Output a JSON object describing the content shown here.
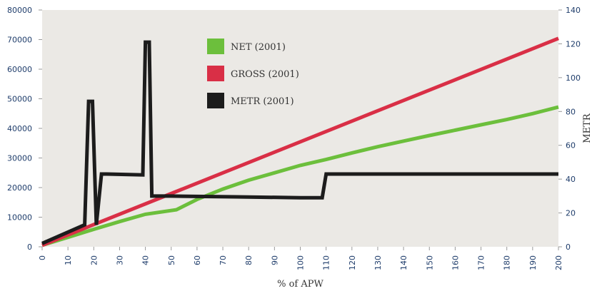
{
  "chart_data": {
    "type": "line",
    "xlabel": "% of APW",
    "ylabel_left": "",
    "ylabel_right": "METR",
    "x_ticks": [
      0,
      10,
      20,
      30,
      40,
      50,
      60,
      70,
      80,
      90,
      100,
      110,
      120,
      130,
      140,
      150,
      160,
      170,
      180,
      190,
      200
    ],
    "y_left_ticks": [
      0,
      10000,
      20000,
      30000,
      40000,
      50000,
      60000,
      70000,
      80000
    ],
    "y_right_ticks": [
      0,
      20,
      40,
      60,
      80,
      100,
      120,
      140
    ],
    "xlim": [
      0,
      200
    ],
    "ylim_left": [
      0,
      80000
    ],
    "ylim_right": [
      0,
      140
    ],
    "legend_position": "top-center",
    "grid": false,
    "colors": {
      "NET (2001)": "#6cbf3c",
      "GROSS (2001)": "#d92f46",
      "METR (2001)": "#1c1c1c",
      "plot_background": "#ebe9e5"
    },
    "series": [
      {
        "name": "NET (2001)",
        "axis": "left",
        "x": [
          0,
          10,
          20,
          30,
          40,
          52,
          60,
          70,
          80,
          90,
          100,
          110,
          120,
          130,
          140,
          150,
          160,
          170,
          180,
          190,
          200
        ],
        "y": [
          500,
          3200,
          5900,
          8500,
          11000,
          12500,
          16000,
          19500,
          22500,
          25000,
          27500,
          29500,
          31700,
          33800,
          35700,
          37600,
          39400,
          41200,
          43000,
          45000,
          47200
        ]
      },
      {
        "name": "GROSS (2001)",
        "axis": "left",
        "x": [
          0,
          200
        ],
        "y": [
          500,
          70400
        ]
      },
      {
        "name": "METR (2001)",
        "axis": "right",
        "x": [
          0,
          16.5,
          18,
          19.5,
          21,
          23,
          25,
          39,
          40,
          41.5,
          42.5,
          50,
          75,
          100,
          108.5,
          110,
          150,
          200
        ],
        "y": [
          2,
          13,
          86,
          86,
          13,
          43,
          43,
          42.5,
          121,
          121,
          30,
          30,
          29.5,
          29,
          29,
          43,
          43,
          43
        ]
      }
    ]
  }
}
